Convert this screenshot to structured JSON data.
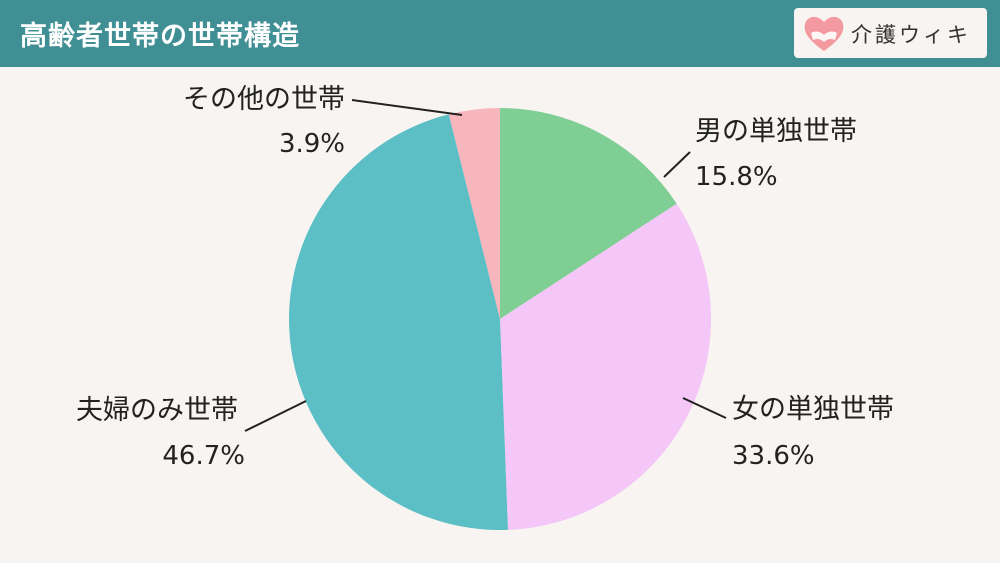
{
  "header": {
    "title": "高齢者世帯の世帯構造",
    "brand": "介護ウィキ",
    "brand_color": "#3f8f94"
  },
  "chart_data": {
    "type": "pie",
    "title": "高齢者世帯の世帯構造",
    "slices": [
      {
        "label": "男の単独世帯",
        "value": 15.8,
        "value_text": "15.8%",
        "color": "#7fcf94"
      },
      {
        "label": "女の単独世帯",
        "value": 33.6,
        "value_text": "33.6%",
        "color": "#f5c6f8"
      },
      {
        "label": "夫婦のみ世帯",
        "value": 46.7,
        "value_text": "46.7%",
        "color": "#5bbfc5"
      },
      {
        "label": "その他の世帯",
        "value": 3.9,
        "value_text": "3.9%",
        "color": "#f7b6bb"
      }
    ],
    "start_angle": "12 o'clock",
    "direction": "clockwise",
    "legend": "none"
  }
}
